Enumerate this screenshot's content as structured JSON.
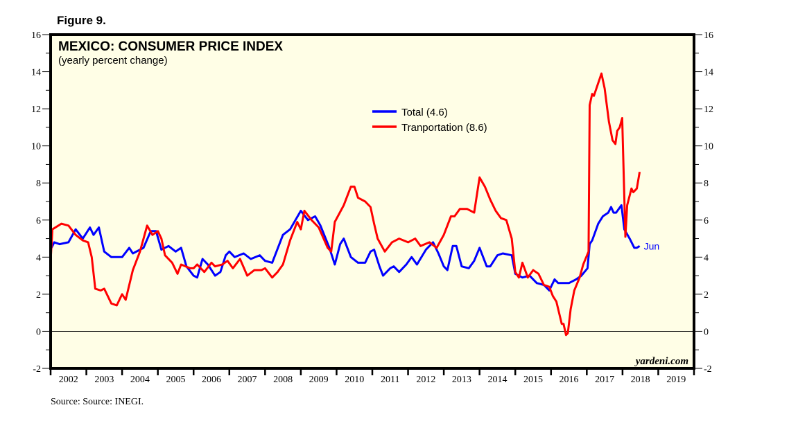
{
  "figure_label": "Figure 9.",
  "source": "Source: Source: INEGI.",
  "watermark": "yardeni.com",
  "chart_data": {
    "type": "line",
    "title": "MEXICO: CONSUMER PRICE INDEX",
    "subtitle": "(yearly percent change)",
    "ylim": [
      -2,
      16
    ],
    "yticks": [
      -2,
      0,
      2,
      4,
      6,
      8,
      10,
      12,
      14,
      16
    ],
    "xlim": [
      2002,
      2020
    ],
    "xtick_labels": [
      "2002",
      "2003",
      "2004",
      "2005",
      "2006",
      "2007",
      "2008",
      "2009",
      "2010",
      "2011",
      "2012",
      "2013",
      "2014",
      "2015",
      "2016",
      "2017",
      "2018",
      "2019"
    ],
    "zero_line": true,
    "grid": false,
    "legend_placement": "top-center",
    "background": "#fffee6",
    "end_label": "Jun",
    "series": [
      {
        "name": "Total (4.6)",
        "color": "#0000ff",
        "points": [
          [
            2002.0,
            4.4
          ],
          [
            2002.1,
            4.8
          ],
          [
            2002.25,
            4.7
          ],
          [
            2002.5,
            4.8
          ],
          [
            2002.7,
            5.5
          ],
          [
            2002.9,
            5.0
          ],
          [
            2003.1,
            5.6
          ],
          [
            2003.2,
            5.2
          ],
          [
            2003.35,
            5.6
          ],
          [
            2003.5,
            4.3
          ],
          [
            2003.7,
            4.0
          ],
          [
            2004.0,
            4.0
          ],
          [
            2004.2,
            4.5
          ],
          [
            2004.3,
            4.2
          ],
          [
            2004.6,
            4.5
          ],
          [
            2004.8,
            5.4
          ],
          [
            2004.95,
            5.4
          ],
          [
            2005.1,
            4.4
          ],
          [
            2005.3,
            4.6
          ],
          [
            2005.5,
            4.3
          ],
          [
            2005.65,
            4.5
          ],
          [
            2005.8,
            3.5
          ],
          [
            2006.0,
            3.0
          ],
          [
            2006.1,
            2.9
          ],
          [
            2006.25,
            3.9
          ],
          [
            2006.4,
            3.6
          ],
          [
            2006.6,
            3.0
          ],
          [
            2006.75,
            3.2
          ],
          [
            2006.9,
            4.1
          ],
          [
            2007.0,
            4.3
          ],
          [
            2007.15,
            4.0
          ],
          [
            2007.4,
            4.2
          ],
          [
            2007.6,
            3.9
          ],
          [
            2007.85,
            4.1
          ],
          [
            2008.0,
            3.8
          ],
          [
            2008.2,
            3.7
          ],
          [
            2008.5,
            5.2
          ],
          [
            2008.7,
            5.5
          ],
          [
            2009.0,
            6.5
          ],
          [
            2009.2,
            6.0
          ],
          [
            2009.4,
            6.2
          ],
          [
            2009.55,
            5.7
          ],
          [
            2009.8,
            4.5
          ],
          [
            2009.95,
            3.6
          ],
          [
            2010.1,
            4.7
          ],
          [
            2010.2,
            5.0
          ],
          [
            2010.4,
            4.0
          ],
          [
            2010.6,
            3.7
          ],
          [
            2010.8,
            3.7
          ],
          [
            2010.95,
            4.3
          ],
          [
            2011.05,
            4.4
          ],
          [
            2011.2,
            3.5
          ],
          [
            2011.3,
            3.0
          ],
          [
            2011.5,
            3.4
          ],
          [
            2011.6,
            3.5
          ],
          [
            2011.75,
            3.2
          ],
          [
            2011.95,
            3.6
          ],
          [
            2012.1,
            4.0
          ],
          [
            2012.25,
            3.6
          ],
          [
            2012.5,
            4.4
          ],
          [
            2012.7,
            4.8
          ],
          [
            2012.85,
            4.2
          ],
          [
            2013.0,
            3.5
          ],
          [
            2013.1,
            3.3
          ],
          [
            2013.25,
            4.6
          ],
          [
            2013.35,
            4.6
          ],
          [
            2013.5,
            3.5
          ],
          [
            2013.7,
            3.4
          ],
          [
            2013.85,
            3.8
          ],
          [
            2014.0,
            4.5
          ],
          [
            2014.2,
            3.5
          ],
          [
            2014.3,
            3.5
          ],
          [
            2014.5,
            4.1
          ],
          [
            2014.65,
            4.2
          ],
          [
            2014.9,
            4.1
          ],
          [
            2015.0,
            3.1
          ],
          [
            2015.2,
            2.9
          ],
          [
            2015.4,
            3.0
          ],
          [
            2015.6,
            2.6
          ],
          [
            2015.8,
            2.5
          ],
          [
            2015.95,
            2.2
          ],
          [
            2016.1,
            2.8
          ],
          [
            2016.2,
            2.6
          ],
          [
            2016.5,
            2.6
          ],
          [
            2016.7,
            2.8
          ],
          [
            2016.85,
            3.0
          ],
          [
            2017.02,
            3.4
          ],
          [
            2017.08,
            4.7
          ],
          [
            2017.15,
            4.9
          ],
          [
            2017.32,
            5.8
          ],
          [
            2017.45,
            6.2
          ],
          [
            2017.6,
            6.4
          ],
          [
            2017.68,
            6.7
          ],
          [
            2017.75,
            6.4
          ],
          [
            2017.82,
            6.4
          ],
          [
            2017.97,
            6.8
          ],
          [
            2018.05,
            5.5
          ],
          [
            2018.2,
            5.0
          ],
          [
            2018.33,
            4.5
          ],
          [
            2018.4,
            4.5
          ],
          [
            2018.48,
            4.6
          ]
        ]
      },
      {
        "name": "Tranportation (8.6)",
        "color": "#ff0000",
        "points": [
          [
            2002.0,
            3.8
          ],
          [
            2002.05,
            5.5
          ],
          [
            2002.3,
            5.8
          ],
          [
            2002.5,
            5.7
          ],
          [
            2002.7,
            5.2
          ],
          [
            2002.9,
            4.9
          ],
          [
            2003.05,
            4.8
          ],
          [
            2003.15,
            4.0
          ],
          [
            2003.25,
            2.3
          ],
          [
            2003.4,
            2.2
          ],
          [
            2003.5,
            2.3
          ],
          [
            2003.7,
            1.5
          ],
          [
            2003.85,
            1.4
          ],
          [
            2004.0,
            2.0
          ],
          [
            2004.1,
            1.7
          ],
          [
            2004.3,
            3.3
          ],
          [
            2004.5,
            4.3
          ],
          [
            2004.7,
            5.7
          ],
          [
            2004.85,
            5.2
          ],
          [
            2005.0,
            5.4
          ],
          [
            2005.1,
            5.0
          ],
          [
            2005.2,
            4.1
          ],
          [
            2005.4,
            3.7
          ],
          [
            2005.55,
            3.1
          ],
          [
            2005.65,
            3.6
          ],
          [
            2005.9,
            3.4
          ],
          [
            2006.0,
            3.4
          ],
          [
            2006.1,
            3.6
          ],
          [
            2006.3,
            3.2
          ],
          [
            2006.5,
            3.7
          ],
          [
            2006.6,
            3.5
          ],
          [
            2006.8,
            3.6
          ],
          [
            2006.95,
            3.8
          ],
          [
            2007.1,
            3.4
          ],
          [
            2007.3,
            3.9
          ],
          [
            2007.5,
            3.0
          ],
          [
            2007.7,
            3.3
          ],
          [
            2007.9,
            3.3
          ],
          [
            2008.0,
            3.4
          ],
          [
            2008.2,
            2.9
          ],
          [
            2008.35,
            3.2
          ],
          [
            2008.5,
            3.6
          ],
          [
            2008.7,
            4.9
          ],
          [
            2008.9,
            5.9
          ],
          [
            2009.0,
            5.5
          ],
          [
            2009.1,
            6.5
          ],
          [
            2009.3,
            6.0
          ],
          [
            2009.5,
            5.6
          ],
          [
            2009.75,
            4.5
          ],
          [
            2009.85,
            4.3
          ],
          [
            2009.95,
            5.9
          ],
          [
            2010.2,
            6.8
          ],
          [
            2010.4,
            7.8
          ],
          [
            2010.5,
            7.8
          ],
          [
            2010.6,
            7.2
          ],
          [
            2010.8,
            7.0
          ],
          [
            2010.95,
            6.7
          ],
          [
            2011.05,
            5.8
          ],
          [
            2011.15,
            5.0
          ],
          [
            2011.35,
            4.3
          ],
          [
            2011.55,
            4.8
          ],
          [
            2011.75,
            5.0
          ],
          [
            2012.0,
            4.8
          ],
          [
            2012.2,
            5.0
          ],
          [
            2012.35,
            4.6
          ],
          [
            2012.6,
            4.8
          ],
          [
            2012.8,
            4.5
          ],
          [
            2013.0,
            5.2
          ],
          [
            2013.2,
            6.2
          ],
          [
            2013.3,
            6.2
          ],
          [
            2013.45,
            6.6
          ],
          [
            2013.65,
            6.6
          ],
          [
            2013.85,
            6.4
          ],
          [
            2014.0,
            8.3
          ],
          [
            2014.15,
            7.8
          ],
          [
            2014.3,
            7.1
          ],
          [
            2014.45,
            6.5
          ],
          [
            2014.6,
            6.1
          ],
          [
            2014.75,
            6.0
          ],
          [
            2014.9,
            5.0
          ],
          [
            2015.0,
            3.2
          ],
          [
            2015.1,
            2.9
          ],
          [
            2015.2,
            3.7
          ],
          [
            2015.35,
            2.9
          ],
          [
            2015.5,
            3.3
          ],
          [
            2015.65,
            3.1
          ],
          [
            2015.8,
            2.5
          ],
          [
            2015.95,
            2.4
          ],
          [
            2016.05,
            1.9
          ],
          [
            2016.15,
            1.6
          ],
          [
            2016.3,
            0.4
          ],
          [
            2016.35,
            0.4
          ],
          [
            2016.42,
            -0.2
          ],
          [
            2016.47,
            -0.1
          ],
          [
            2016.55,
            1.2
          ],
          [
            2016.65,
            2.2
          ],
          [
            2016.8,
            2.9
          ],
          [
            2016.9,
            3.6
          ],
          [
            2017.05,
            4.3
          ],
          [
            2017.08,
            12.2
          ],
          [
            2017.15,
            12.8
          ],
          [
            2017.2,
            12.7
          ],
          [
            2017.41,
            13.9
          ],
          [
            2017.5,
            13.1
          ],
          [
            2017.62,
            11.3
          ],
          [
            2017.72,
            10.3
          ],
          [
            2017.8,
            10.1
          ],
          [
            2017.85,
            10.8
          ],
          [
            2017.92,
            11.0
          ],
          [
            2017.99,
            11.5
          ],
          [
            2018.08,
            5.1
          ],
          [
            2018.13,
            6.8
          ],
          [
            2018.25,
            7.7
          ],
          [
            2018.3,
            7.5
          ],
          [
            2018.4,
            7.7
          ],
          [
            2018.48,
            8.6
          ]
        ]
      }
    ]
  }
}
